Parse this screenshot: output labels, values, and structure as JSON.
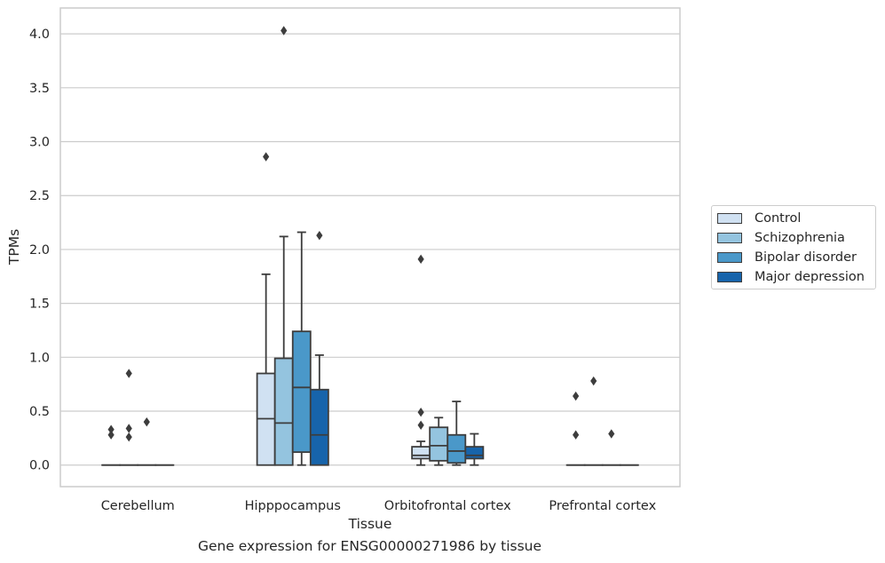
{
  "chart_data": {
    "type": "box",
    "title": "",
    "caption": "Gene expression for ENSG00000271986 by tissue",
    "xlabel": "Tissue",
    "ylabel": "TPMs",
    "ylim": [
      -0.2,
      4.24
    ],
    "yticks": [
      0.0,
      0.5,
      1.0,
      1.5,
      2.0,
      2.5,
      3.0,
      3.5,
      4.0
    ],
    "ytick_labels": [
      "0.0",
      "0.5",
      "1.0",
      "1.5",
      "2.0",
      "2.5",
      "3.0",
      "3.5",
      "4.0"
    ],
    "grid": true,
    "legend_position": "right",
    "categories": [
      "Cerebellum",
      "Hipppocampus",
      "Orbitofrontal cortex",
      "Prefrontal cortex"
    ],
    "series": [
      {
        "name": "Control",
        "color": "#d0e1f2",
        "boxes": [
          {
            "min": 0.0,
            "q1": 0.0,
            "median": 0.0,
            "q3": 0.0,
            "max": 0.0,
            "outliers": [
              0.33,
              0.28
            ]
          },
          {
            "min": 0.0,
            "q1": 0.0,
            "median": 0.43,
            "q3": 0.85,
            "max": 1.77,
            "outliers": [
              2.86
            ]
          },
          {
            "min": 0.0,
            "q1": 0.06,
            "median": 0.09,
            "q3": 0.17,
            "max": 0.22,
            "outliers": [
              1.91,
              0.49,
              0.37
            ]
          },
          {
            "min": 0.0,
            "q1": 0.0,
            "median": 0.0,
            "q3": 0.0,
            "max": 0.0,
            "outliers": [
              0.64,
              0.28
            ]
          }
        ]
      },
      {
        "name": "Schizophrenia",
        "color": "#94c4df",
        "boxes": [
          {
            "min": 0.0,
            "q1": 0.0,
            "median": 0.0,
            "q3": 0.0,
            "max": 0.0,
            "outliers": [
              0.85,
              0.34,
              0.26
            ]
          },
          {
            "min": 0.0,
            "q1": 0.0,
            "median": 0.39,
            "q3": 0.99,
            "max": 2.12,
            "outliers": [
              4.03
            ]
          },
          {
            "min": 0.0,
            "q1": 0.04,
            "median": 0.18,
            "q3": 0.35,
            "max": 0.44,
            "outliers": []
          },
          {
            "min": 0.0,
            "q1": 0.0,
            "median": 0.0,
            "q3": 0.0,
            "max": 0.0,
            "outliers": [
              0.78
            ]
          }
        ]
      },
      {
        "name": "Bipolar disorder",
        "color": "#4a98c9",
        "boxes": [
          {
            "min": 0.0,
            "q1": 0.0,
            "median": 0.0,
            "q3": 0.0,
            "max": 0.0,
            "outliers": [
              0.4
            ]
          },
          {
            "min": 0.0,
            "q1": 0.12,
            "median": 0.72,
            "q3": 1.24,
            "max": 2.16,
            "outliers": []
          },
          {
            "min": 0.0,
            "q1": 0.02,
            "median": 0.13,
            "q3": 0.28,
            "max": 0.59,
            "outliers": []
          },
          {
            "min": 0.0,
            "q1": 0.0,
            "median": 0.0,
            "q3": 0.0,
            "max": 0.0,
            "outliers": [
              0.29
            ]
          }
        ]
      },
      {
        "name": "Major depression",
        "color": "#1764ab",
        "boxes": [
          {
            "min": 0.0,
            "q1": 0.0,
            "median": 0.0,
            "q3": 0.0,
            "max": 0.0,
            "outliers": []
          },
          {
            "min": 0.0,
            "q1": 0.0,
            "median": 0.28,
            "q3": 0.7,
            "max": 1.02,
            "outliers": [
              2.13
            ]
          },
          {
            "min": 0.0,
            "q1": 0.06,
            "median": 0.09,
            "q3": 0.17,
            "max": 0.29,
            "outliers": []
          },
          {
            "min": 0.0,
            "q1": 0.0,
            "median": 0.0,
            "q3": 0.0,
            "max": 0.0,
            "outliers": []
          }
        ]
      }
    ]
  }
}
